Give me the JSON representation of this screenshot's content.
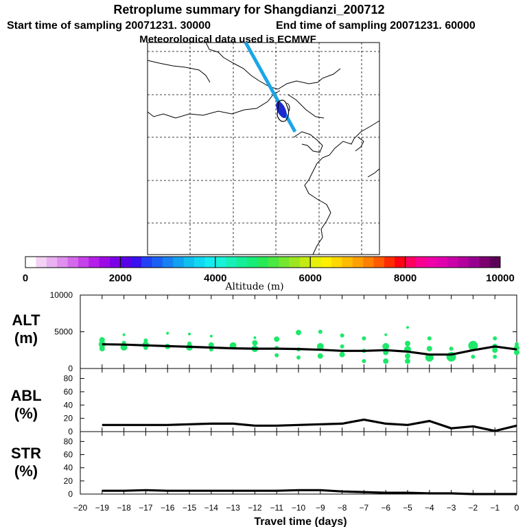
{
  "header": {
    "title": "Retroplume summary for Shangdianzi_200712",
    "start_label": "Start time of sampling 20071231. 30000",
    "end_label": "End time of sampling 20071231. 60000",
    "met_label": "Meteorological data used is ECMWF"
  },
  "colorbar": {
    "label": "Altitude (m)",
    "tick_labels": [
      "0",
      "2000",
      "4000",
      "6000",
      "8000",
      "10000"
    ],
    "tick_values": [
      0,
      2000,
      4000,
      6000,
      8000,
      10000
    ],
    "colors": [
      "#ffffff",
      "#f3d2f5",
      "#e9b1f1",
      "#df8fee",
      "#d46aeb",
      "#c542ea",
      "#b41ee8",
      "#9c0be6",
      "#7b00e6",
      "#5a00e6",
      "#3a10f0",
      "#2440f4",
      "#1b60f4",
      "#1880f2",
      "#12a0f0",
      "#10bff0",
      "#10d8f2",
      "#14ecf0",
      "#18f2d8",
      "#16f0b8",
      "#14ee98",
      "#16ec78",
      "#26ea58",
      "#4ae840",
      "#74e630",
      "#9ce620",
      "#c4ea14",
      "#e6f00c",
      "#fff000",
      "#ffd800",
      "#ffbc00",
      "#ffa000",
      "#ff8000",
      "#ff5a00",
      "#ff2c00",
      "#ff0014",
      "#ff0060",
      "#fa0090",
      "#ef00a8",
      "#e000ae",
      "#cc00a8",
      "#b4009c",
      "#980090",
      "#7c0070",
      "#5c0058"
    ]
  },
  "map": {
    "trajectory_color": "#1aa6e6",
    "plume_color": "#1a2ad0"
  },
  "chart_data": [
    {
      "type": "line",
      "name": "ALT",
      "ylabel_lines": [
        "ALT",
        "(m)"
      ],
      "ylim": [
        0,
        10000
      ],
      "y_tick_labels": [
        "10000",
        "5000",
        "0"
      ],
      "y_tick_values": [
        10000,
        5000,
        0
      ],
      "x": [
        -19,
        -18,
        -17,
        -16,
        -15,
        -14,
        -13,
        -12,
        -11,
        -10,
        -9,
        -8,
        -7,
        -6,
        -5,
        -4,
        -3,
        -2,
        -1,
        0
      ],
      "values": [
        3300,
        3250,
        3150,
        3050,
        2950,
        2850,
        2750,
        2700,
        2700,
        2650,
        2550,
        2400,
        2400,
        2500,
        2300,
        1900,
        1900,
        2500,
        3000,
        2600
      ],
      "scatter_color": "#1ee86a",
      "scatter": [
        [
          -19,
          3900,
          4
        ],
        [
          -19,
          3300,
          5
        ],
        [
          -19,
          2700,
          4
        ],
        [
          -18,
          4600,
          2
        ],
        [
          -18,
          3500,
          3
        ],
        [
          -18,
          2900,
          5
        ],
        [
          -17,
          3800,
          3
        ],
        [
          -17,
          3200,
          5
        ],
        [
          -17,
          2800,
          3
        ],
        [
          -16,
          4800,
          2
        ],
        [
          -16,
          3000,
          4
        ],
        [
          -15,
          4700,
          2
        ],
        [
          -15,
          3400,
          3
        ],
        [
          -15,
          2900,
          5
        ],
        [
          -14,
          4400,
          2
        ],
        [
          -14,
          3200,
          4
        ],
        [
          -14,
          2600,
          3
        ],
        [
          -13,
          3100,
          5
        ],
        [
          -12,
          4200,
          2
        ],
        [
          -12,
          3500,
          4
        ],
        [
          -12,
          2700,
          5
        ],
        [
          -11,
          4000,
          4
        ],
        [
          -11,
          2800,
          3
        ],
        [
          -11,
          1800,
          3
        ],
        [
          -10,
          4900,
          4
        ],
        [
          -10,
          2600,
          3
        ],
        [
          -10,
          1500,
          3
        ],
        [
          -9,
          5000,
          3
        ],
        [
          -9,
          3000,
          5
        ],
        [
          -9,
          1700,
          4
        ],
        [
          -8,
          4500,
          3
        ],
        [
          -8,
          3000,
          3
        ],
        [
          -8,
          1900,
          4
        ],
        [
          -7,
          4100,
          3
        ],
        [
          -7,
          2400,
          3
        ],
        [
          -7,
          1000,
          3
        ],
        [
          -6,
          4600,
          2
        ],
        [
          -6,
          3000,
          5
        ],
        [
          -6,
          2200,
          4
        ],
        [
          -6,
          1000,
          4
        ],
        [
          -5,
          5600,
          2
        ],
        [
          -5,
          3400,
          4
        ],
        [
          -5,
          2600,
          5
        ],
        [
          -5,
          1700,
          4
        ],
        [
          -5,
          1000,
          4
        ],
        [
          -4,
          4100,
          3
        ],
        [
          -4,
          2700,
          4
        ],
        [
          -4,
          1500,
          6
        ],
        [
          -3,
          2700,
          3
        ],
        [
          -3,
          1600,
          7
        ],
        [
          -2,
          3100,
          7
        ],
        [
          -2,
          1600,
          3
        ],
        [
          -1,
          4100,
          3
        ],
        [
          -1,
          3000,
          4
        ],
        [
          -1,
          2500,
          4
        ],
        [
          -1,
          1600,
          3
        ],
        [
          0,
          3300,
          3
        ],
        [
          0,
          2800,
          4
        ],
        [
          0,
          2200,
          4
        ]
      ]
    },
    {
      "type": "line",
      "name": "ABL",
      "ylabel_lines": [
        "ABL",
        "(%)"
      ],
      "ylim": [
        0,
        95
      ],
      "y_tick_labels": [
        "80",
        "60",
        "40",
        "20",
        "0"
      ],
      "y_tick_values": [
        80,
        60,
        40,
        20,
        0
      ],
      "x": [
        -19,
        -18,
        -17,
        -16,
        -15,
        -14,
        -13,
        -12,
        -11,
        -10,
        -9,
        -8,
        -7,
        -6,
        -5,
        -4,
        -3,
        -2,
        -1,
        0
      ],
      "values": [
        10,
        10,
        10,
        10,
        11,
        12,
        12,
        9,
        9,
        10,
        11,
        12,
        18,
        12,
        10,
        16,
        5,
        8,
        1,
        9
      ]
    },
    {
      "type": "line",
      "name": "STR",
      "ylabel_lines": [
        "STR",
        "(%)"
      ],
      "ylim": [
        0,
        95
      ],
      "y_tick_labels": [
        "80",
        "60",
        "40",
        "20",
        "0"
      ],
      "y_tick_values": [
        80,
        60,
        40,
        20,
        0
      ],
      "x": [
        -19,
        -18,
        -17,
        -16,
        -15,
        -14,
        -13,
        -12,
        -11,
        -10,
        -9,
        -8,
        -7,
        -6,
        -5,
        -4,
        -3,
        -2,
        -1,
        0
      ],
      "values": [
        5,
        5,
        6,
        5,
        5,
        5,
        5,
        5,
        5,
        6,
        6,
        4,
        3,
        2,
        2,
        1,
        1,
        0,
        0,
        0
      ]
    }
  ],
  "x_axis": {
    "label": "Travel time (days)",
    "xlim": [
      -20,
      0
    ],
    "tick_values": [
      -20,
      -19,
      -18,
      -17,
      -16,
      -15,
      -14,
      -13,
      -12,
      -11,
      -10,
      -9,
      -8,
      -7,
      -6,
      -5,
      -4,
      -3,
      -2,
      -1,
      0
    ],
    "tick_labels": [
      "−20",
      "−19",
      "−18",
      "−17",
      "−16",
      "−15",
      "−14",
      "−13",
      "−12",
      "−11",
      "−10",
      "−9",
      "−8",
      "−7",
      "−6",
      "−5",
      "−4",
      "−3",
      "−2",
      "−1",
      "0"
    ]
  }
}
